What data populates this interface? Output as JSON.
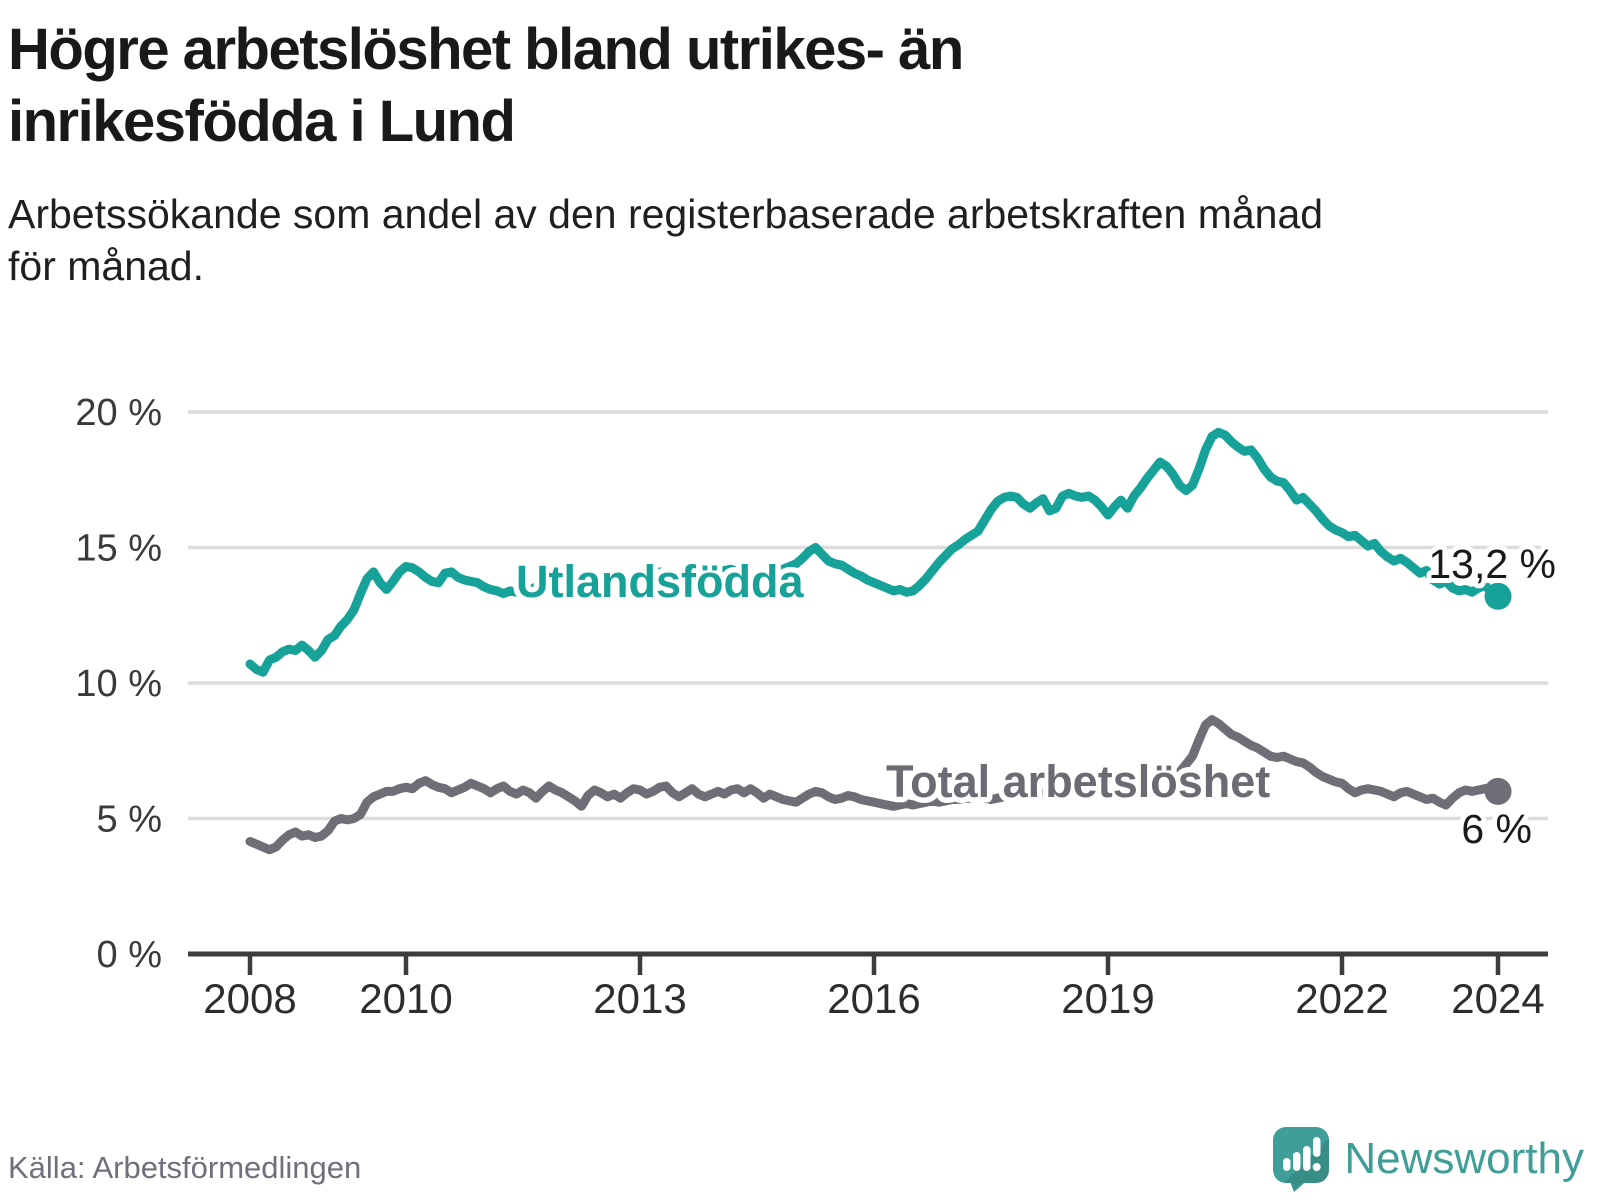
{
  "chart_data": {
    "type": "line",
    "title": "Högre arbetslöshet bland utrikes- än inrikesfödda i Lund",
    "title_lines": [
      "Högre arbetslöshet bland utrikes- än",
      "inrikesfödda i Lund"
    ],
    "subtitle_lines": [
      "Arbetssökande som andel av den registerbaserade arbetskraften månad",
      "för månad."
    ],
    "source": "Källa: Arbetsförmedlingen",
    "grid": true,
    "legend_position": "inline-labels",
    "x_axis": {
      "ticks": [
        {
          "value": 2008,
          "label": "2008"
        },
        {
          "value": 2010,
          "label": "2010"
        },
        {
          "value": 2013,
          "label": "2013"
        },
        {
          "value": 2016,
          "label": "2016"
        },
        {
          "value": 2019,
          "label": "2019"
        },
        {
          "value": 2022,
          "label": "2022"
        },
        {
          "value": 2024,
          "label": "2024"
        }
      ]
    },
    "y_axis": {
      "unit": "%",
      "range": [
        0,
        20
      ],
      "ticks": [
        {
          "value": 0,
          "label": "0 %"
        },
        {
          "value": 5,
          "label": "5 %"
        },
        {
          "value": 10,
          "label": "10 %"
        },
        {
          "value": 15,
          "label": "15 %"
        },
        {
          "value": 20,
          "label": "20 %"
        }
      ]
    },
    "series": [
      {
        "name": "Utlandsfödda",
        "color": "#16a298",
        "end_label": "13,2 %",
        "last_value": 13.2,
        "start_year": 2008,
        "monthly_values": [
          10.7,
          10.5,
          10.4,
          10.85,
          10.95,
          11.15,
          11.25,
          11.2,
          11.4,
          11.2,
          10.95,
          11.2,
          11.6,
          11.75,
          12.1,
          12.35,
          12.7,
          13.3,
          13.85,
          14.1,
          13.7,
          13.45,
          13.75,
          14.1,
          14.3,
          14.25,
          14.1,
          13.9,
          13.75,
          13.7,
          14.05,
          14.1,
          13.9,
          13.8,
          13.75,
          13.7,
          13.55,
          13.45,
          13.4,
          13.3,
          13.4,
          13.35,
          13.3,
          13.4,
          13.55,
          13.6,
          13.5,
          13.55,
          13.6,
          13.65,
          13.75,
          13.8,
          13.85,
          13.9,
          13.9,
          13.85,
          13.8,
          13.85,
          13.9,
          13.9,
          13.9,
          13.95,
          14.0,
          14.1,
          14.05,
          13.95,
          13.9,
          13.95,
          14.0,
          14.05,
          14.0,
          14.05,
          14.1,
          14.15,
          14.2,
          14.1,
          14.0,
          14.05,
          14.0,
          14.1,
          14.05,
          14.1,
          14.2,
          14.3,
          14.4,
          14.6,
          14.85,
          15.0,
          14.75,
          14.5,
          14.4,
          14.35,
          14.2,
          14.05,
          13.95,
          13.8,
          13.7,
          13.6,
          13.5,
          13.4,
          13.45,
          13.35,
          13.4,
          13.6,
          13.85,
          14.15,
          14.45,
          14.7,
          14.95,
          15.1,
          15.3,
          15.45,
          15.6,
          16.0,
          16.4,
          16.7,
          16.85,
          16.9,
          16.85,
          16.6,
          16.45,
          16.65,
          16.8,
          16.35,
          16.45,
          16.9,
          17.0,
          16.9,
          16.85,
          16.9,
          16.75,
          16.5,
          16.2,
          16.5,
          16.75,
          16.45,
          16.9,
          17.2,
          17.55,
          17.85,
          18.15,
          18.0,
          17.7,
          17.3,
          17.1,
          17.3,
          17.9,
          18.6,
          19.1,
          19.25,
          19.15,
          18.9,
          18.7,
          18.55,
          18.6,
          18.3,
          17.9,
          17.6,
          17.45,
          17.4,
          17.1,
          16.75,
          16.85,
          16.6,
          16.35,
          16.05,
          15.8,
          15.65,
          15.55,
          15.4,
          15.45,
          15.25,
          15.05,
          15.15,
          14.85,
          14.65,
          14.5,
          14.6,
          14.45,
          14.25,
          14.05,
          14.15,
          13.8,
          13.65,
          13.75,
          13.5,
          13.4,
          13.45,
          13.35,
          13.5,
          13.6,
          13.35,
          13.2
        ]
      },
      {
        "name": "Total arbetslöshet",
        "color": "#6e6e76",
        "end_label": "6 %",
        "last_value": 6.0,
        "start_year": 2008,
        "monthly_values": [
          4.15,
          4.05,
          3.95,
          3.85,
          3.95,
          4.2,
          4.4,
          4.5,
          4.35,
          4.4,
          4.3,
          4.35,
          4.55,
          4.9,
          5.0,
          4.95,
          5.0,
          5.15,
          5.6,
          5.8,
          5.9,
          6.0,
          6.0,
          6.1,
          6.15,
          6.1,
          6.3,
          6.4,
          6.25,
          6.15,
          6.1,
          5.95,
          6.05,
          6.15,
          6.3,
          6.2,
          6.1,
          5.95,
          6.1,
          6.2,
          6.0,
          5.9,
          6.05,
          5.95,
          5.75,
          6.0,
          6.2,
          6.05,
          5.95,
          5.8,
          5.65,
          5.45,
          5.85,
          6.05,
          5.95,
          5.8,
          5.9,
          5.75,
          5.95,
          6.1,
          6.05,
          5.9,
          6.0,
          6.15,
          6.2,
          5.95,
          5.8,
          5.95,
          6.1,
          5.9,
          5.8,
          5.9,
          6.0,
          5.9,
          6.05,
          6.1,
          5.95,
          6.1,
          5.95,
          5.75,
          5.9,
          5.8,
          5.7,
          5.65,
          5.6,
          5.75,
          5.9,
          6.0,
          5.95,
          5.8,
          5.7,
          5.75,
          5.85,
          5.8,
          5.7,
          5.65,
          5.6,
          5.55,
          5.5,
          5.45,
          5.5,
          5.55,
          5.5,
          5.55,
          5.6,
          5.65,
          5.6,
          5.65,
          5.7,
          5.7,
          5.75,
          5.75,
          5.8,
          5.75,
          5.7,
          5.75,
          5.8,
          5.8,
          5.85,
          5.85,
          5.9,
          5.9,
          5.95,
          6.0,
          5.95,
          5.9,
          5.95,
          6.0,
          6.0,
          6.05,
          6.05,
          6.1,
          6.1,
          6.15,
          6.15,
          6.2,
          6.25,
          6.2,
          6.25,
          6.3,
          6.35,
          6.4,
          6.5,
          6.7,
          7.0,
          7.3,
          7.9,
          8.45,
          8.65,
          8.5,
          8.3,
          8.1,
          8.0,
          7.85,
          7.7,
          7.6,
          7.45,
          7.3,
          7.25,
          7.3,
          7.2,
          7.1,
          7.05,
          6.9,
          6.7,
          6.55,
          6.45,
          6.35,
          6.3,
          6.1,
          5.95,
          6.05,
          6.1,
          6.05,
          6.0,
          5.9,
          5.8,
          5.95,
          6.0,
          5.9,
          5.8,
          5.7,
          5.75,
          5.6,
          5.5,
          5.75,
          5.95,
          6.05,
          6.0,
          6.05,
          6.1,
          6.15,
          6.0
        ]
      }
    ]
  },
  "footer": {
    "brand": "Newsworthy"
  },
  "colors": {
    "accent_teal": "#16a298",
    "series_gray": "#6e6e76",
    "gridline": "#dcdcdc",
    "axis": "#3d3d3d",
    "text_dark": "#191919",
    "text_muted": "#70707a",
    "brand_teal": "#3f9e97"
  }
}
